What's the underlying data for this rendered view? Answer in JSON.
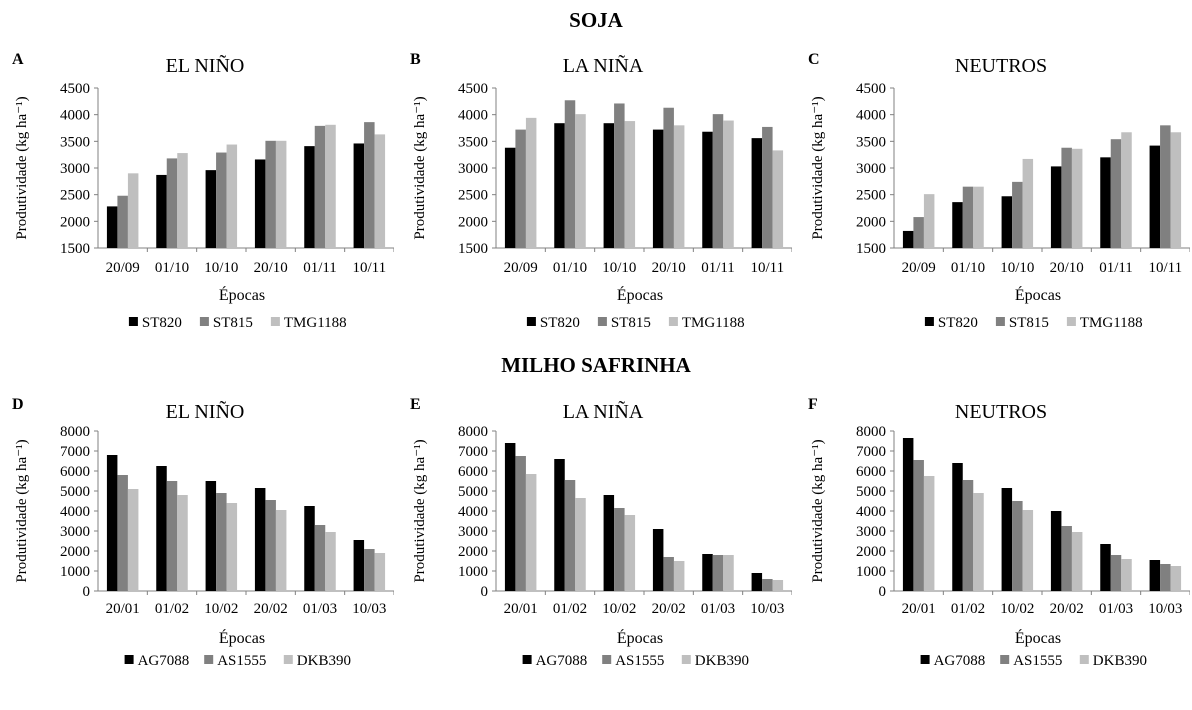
{
  "figure": {
    "sections": [
      {
        "title": "SOJA"
      },
      {
        "title": "MILHO SAFRINHA"
      }
    ]
  },
  "chart_data": [
    {
      "panel": "A",
      "title": "EL NIÑO",
      "type": "bar",
      "xlabel": "Épocas",
      "ylabel": "Produtividade (kg ha⁻¹)",
      "ylim": [
        1500,
        4500
      ],
      "yticks": [
        1500,
        2000,
        2500,
        3000,
        3500,
        4000,
        4500
      ],
      "categories": [
        "20/09",
        "01/10",
        "10/10",
        "20/10",
        "01/11",
        "10/11"
      ],
      "series": [
        {
          "name": "ST820",
          "color": "#000000",
          "values": [
            2280,
            2870,
            2960,
            3160,
            3410,
            3460
          ]
        },
        {
          "name": "ST815",
          "color": "#808080",
          "values": [
            2480,
            3180,
            3290,
            3510,
            3790,
            3860
          ]
        },
        {
          "name": "TMG1188",
          "color": "#bfbfbf",
          "values": [
            2900,
            3280,
            3440,
            3510,
            3810,
            3630
          ]
        }
      ],
      "legend": "bottom"
    },
    {
      "panel": "B",
      "title": "LA NIÑA",
      "type": "bar",
      "xlabel": "Épocas",
      "ylabel": "Produtividade (kg ha⁻¹)",
      "ylim": [
        1500,
        4500
      ],
      "yticks": [
        1500,
        2000,
        2500,
        3000,
        3500,
        4000,
        4500
      ],
      "categories": [
        "20/09",
        "01/10",
        "10/10",
        "20/10",
        "01/11",
        "10/11"
      ],
      "series": [
        {
          "name": "ST820",
          "color": "#000000",
          "values": [
            3380,
            3840,
            3840,
            3720,
            3680,
            3560
          ]
        },
        {
          "name": "ST815",
          "color": "#808080",
          "values": [
            3720,
            4270,
            4210,
            4130,
            4010,
            3770
          ]
        },
        {
          "name": "TMG1188",
          "color": "#bfbfbf",
          "values": [
            3940,
            4010,
            3880,
            3800,
            3890,
            3330
          ]
        }
      ],
      "legend": "bottom"
    },
    {
      "panel": "C",
      "title": "NEUTROS",
      "type": "bar",
      "xlabel": "Épocas",
      "ylabel": "Produtividade (kg ha⁻¹)",
      "ylim": [
        1500,
        4500
      ],
      "yticks": [
        1500,
        2000,
        2500,
        3000,
        3500,
        4000,
        4500
      ],
      "categories": [
        "20/09",
        "01/10",
        "10/10",
        "20/10",
        "01/11",
        "10/11"
      ],
      "series": [
        {
          "name": "ST820",
          "color": "#000000",
          "values": [
            1820,
            2360,
            2470,
            3030,
            3200,
            3420
          ]
        },
        {
          "name": "ST815",
          "color": "#808080",
          "values": [
            2080,
            2650,
            2740,
            3380,
            3540,
            3800
          ]
        },
        {
          "name": "TMG1188",
          "color": "#bfbfbf",
          "values": [
            2510,
            2650,
            3170,
            3360,
            3670,
            3670
          ]
        }
      ],
      "legend": "bottom"
    },
    {
      "panel": "D",
      "title": "EL NIÑO",
      "type": "bar",
      "xlabel": "Épocas",
      "ylabel": "Produtividade (kg ha⁻¹)",
      "ylim": [
        0,
        8000
      ],
      "yticks": [
        0,
        1000,
        2000,
        3000,
        4000,
        5000,
        6000,
        7000,
        8000
      ],
      "categories": [
        "20/01",
        "01/02",
        "10/02",
        "20/02",
        "01/03",
        "10/03"
      ],
      "series": [
        {
          "name": "AG7088",
          "color": "#000000",
          "values": [
            6800,
            6250,
            5500,
            5150,
            4250,
            2550
          ]
        },
        {
          "name": "AS1555",
          "color": "#808080",
          "values": [
            5800,
            5500,
            4900,
            4550,
            3300,
            2100
          ]
        },
        {
          "name": "DKB390",
          "color": "#bfbfbf",
          "values": [
            5100,
            4800,
            4400,
            4050,
            2950,
            1900
          ]
        }
      ],
      "legend": "bottom"
    },
    {
      "panel": "E",
      "title": "LA NIÑA",
      "type": "bar",
      "xlabel": "Épocas",
      "ylabel": "Produtividade (kg ha⁻¹)",
      "ylim": [
        0,
        8000
      ],
      "yticks": [
        0,
        1000,
        2000,
        3000,
        4000,
        5000,
        6000,
        7000,
        8000
      ],
      "categories": [
        "20/01",
        "01/02",
        "10/02",
        "20/02",
        "01/03",
        "10/03"
      ],
      "series": [
        {
          "name": "AG7088",
          "color": "#000000",
          "values": [
            7400,
            6600,
            4800,
            3100,
            1850,
            900
          ]
        },
        {
          "name": "AS1555",
          "color": "#808080",
          "values": [
            6750,
            5550,
            4150,
            1700,
            1800,
            600
          ]
        },
        {
          "name": "DKB390",
          "color": "#bfbfbf",
          "values": [
            5850,
            4650,
            3800,
            1500,
            1800,
            550
          ]
        }
      ],
      "legend": "bottom"
    },
    {
      "panel": "F",
      "title": "NEUTROS",
      "type": "bar",
      "xlabel": "Épocas",
      "ylabel": "Produtividade (kg ha⁻¹)",
      "ylim": [
        0,
        8000
      ],
      "yticks": [
        0,
        1000,
        2000,
        3000,
        4000,
        5000,
        6000,
        7000,
        8000
      ],
      "categories": [
        "20/01",
        "01/02",
        "10/02",
        "20/02",
        "01/03",
        "10/03"
      ],
      "series": [
        {
          "name": "AG7088",
          "color": "#000000",
          "values": [
            7650,
            6400,
            5150,
            4000,
            2350,
            1550
          ]
        },
        {
          "name": "AS1555",
          "color": "#808080",
          "values": [
            6550,
            5550,
            4500,
            3250,
            1800,
            1350
          ]
        },
        {
          "name": "DKB390",
          "color": "#bfbfbf",
          "values": [
            5750,
            4900,
            4050,
            2950,
            1600,
            1250
          ]
        }
      ],
      "legend": "bottom"
    }
  ]
}
